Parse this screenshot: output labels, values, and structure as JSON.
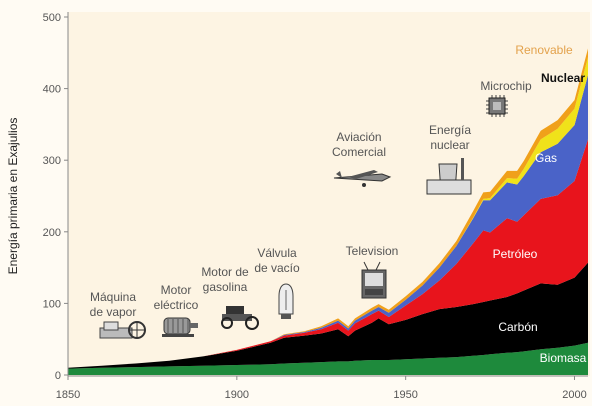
{
  "chart_data": {
    "type": "area",
    "stacked": true,
    "title": "",
    "xlabel": "",
    "ylabel": "Energía primaria en Exajulios",
    "xlim": [
      1850,
      2004
    ],
    "ylim": [
      0,
      500
    ],
    "x_ticks": [
      1850,
      1900,
      1950,
      2000
    ],
    "y_ticks": [
      0,
      100,
      200,
      300,
      400,
      500
    ],
    "grid": false,
    "x": [
      1850,
      1860,
      1870,
      1880,
      1890,
      1900,
      1910,
      1914,
      1920,
      1925,
      1930,
      1933,
      1935,
      1940,
      1942,
      1945,
      1950,
      1955,
      1960,
      1965,
      1970,
      1973,
      1975,
      1980,
      1983,
      1985,
      1990,
      1995,
      2000,
      2004
    ],
    "series": [
      {
        "name": "Biomasa",
        "color": "#1e8a3c",
        "values": [
          9,
          10,
          11,
          12,
          13,
          14,
          15,
          16,
          17,
          18,
          19,
          19,
          20,
          21,
          21,
          21,
          22,
          23,
          24,
          25,
          27,
          28,
          29,
          31,
          32,
          33,
          36,
          38,
          41,
          45
        ]
      },
      {
        "name": "Carbón",
        "color": "#000000",
        "values": [
          1,
          3,
          5,
          8,
          13,
          20,
          30,
          36,
          38,
          40,
          45,
          35,
          42,
          52,
          58,
          50,
          55,
          62,
          68,
          70,
          72,
          74,
          75,
          78,
          82,
          85,
          92,
          88,
          95,
          112
        ]
      },
      {
        "name": "Petróleo",
        "color": "#e8141c",
        "values": [
          0,
          0,
          0,
          0,
          0,
          1,
          2,
          3,
          4,
          6,
          9,
          8,
          10,
          12,
          11,
          10,
          20,
          28,
          40,
          60,
          85,
          100,
          95,
          110,
          100,
          105,
          118,
          125,
          135,
          172
        ]
      },
      {
        "name": "Gas",
        "color": "#4a63c8",
        "values": [
          0,
          0,
          0,
          0,
          0,
          0,
          0,
          1,
          1,
          2,
          3,
          3,
          4,
          5,
          5,
          6,
          8,
          12,
          18,
          25,
          35,
          42,
          45,
          50,
          52,
          55,
          65,
          72,
          78,
          90
        ]
      },
      {
        "name": "Nuclear",
        "color": "#f0e21a",
        "values": [
          0,
          0,
          0,
          0,
          0,
          0,
          0,
          0,
          0,
          0,
          0,
          0,
          0,
          0,
          0,
          0,
          0,
          0,
          0,
          0,
          1,
          2,
          3,
          6,
          8,
          10,
          18,
          21,
          23,
          25
        ]
      },
      {
        "name": "Renovable",
        "color": "#f0a01a",
        "values": [
          0,
          0,
          0,
          0,
          0,
          0,
          0,
          1,
          1,
          2,
          3,
          3,
          3,
          4,
          4,
          4,
          5,
          5,
          6,
          7,
          9,
          9,
          9,
          10,
          11,
          11,
          12,
          12,
          12,
          12
        ]
      }
    ],
    "annotations": [
      {
        "text": "Máquina de vapor",
        "year": 1856,
        "lines": [
          "Máquina",
          "de vapor"
        ]
      },
      {
        "text": "Motor eléctrico",
        "year": 1880,
        "lines": [
          "Motor",
          "eléctrico"
        ]
      },
      {
        "text": "Motor de gasolina",
        "year": 1900,
        "lines": [
          "Motor de",
          "gasolina"
        ]
      },
      {
        "text": "Válvula de vacío",
        "year": 1918,
        "lines": [
          "Válvula",
          "de vacío"
        ]
      },
      {
        "text": "Aviación Comercial",
        "year": 1942,
        "lines": [
          "Aviación",
          "Comercial"
        ]
      },
      {
        "text": "Television",
        "year": 1950,
        "lines": [
          "Television"
        ]
      },
      {
        "text": "Energía nuclear",
        "year": 1965,
        "lines": [
          "Energía",
          "nuclear"
        ]
      },
      {
        "text": "Microchip",
        "year": 1977,
        "lines": [
          "Microchip"
        ]
      }
    ]
  }
}
